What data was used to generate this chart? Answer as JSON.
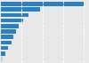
{
  "values": [
    470,
    220,
    155,
    125,
    100,
    85,
    70,
    58,
    42,
    25,
    8
  ],
  "bar_color": "#2980c4",
  "last_bar_color": "#b0cfe8",
  "background_color": "#e8e8e8",
  "grid_color": "#ffffff",
  "figsize": [
    1.0,
    0.71
  ],
  "dpi": 100,
  "bar_height": 0.75
}
